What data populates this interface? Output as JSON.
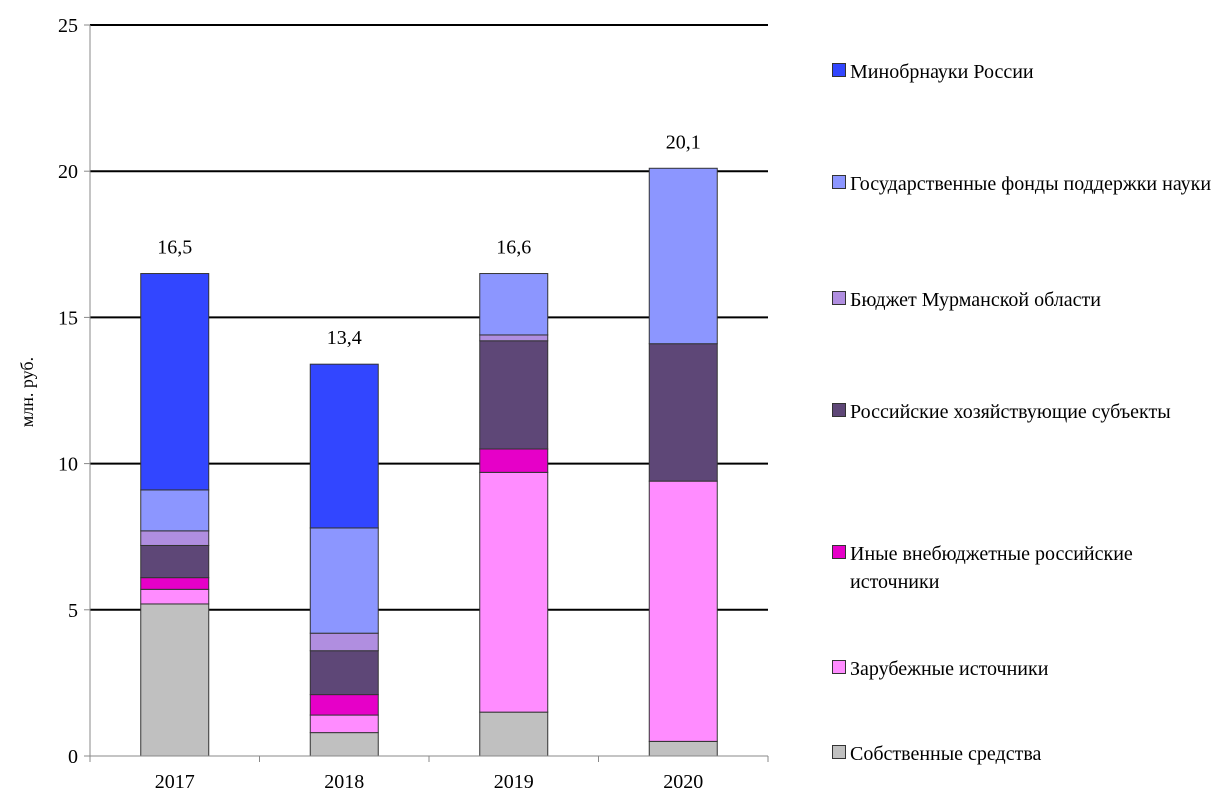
{
  "chart_data": {
    "type": "bar",
    "stacked": true,
    "categories": [
      "2017",
      "2018",
      "2019",
      "2020"
    ],
    "ylabel": "млн. руб.",
    "ylim": [
      0,
      25
    ],
    "yticks": [
      0,
      5,
      10,
      15,
      20,
      25
    ],
    "grid": true,
    "legend_position": "right",
    "totals": [
      "16,5",
      "13,4",
      "16,6",
      "20,1"
    ],
    "series": [
      {
        "name": "Собственные средства",
        "color": "#c0c0c0",
        "values": [
          5.2,
          0.8,
          1.5,
          0.5
        ]
      },
      {
        "name": "Зарубежные источники",
        "color": "#ff8cff",
        "values": [
          0.5,
          0.6,
          8.2,
          8.9
        ]
      },
      {
        "name": "Иные внебюджетные российские источники",
        "color": "#e600c8",
        "values": [
          0.4,
          0.7,
          0.8,
          0.0
        ]
      },
      {
        "name": "Российские хозяйствующие субъекты",
        "color": "#5e4777",
        "values": [
          1.1,
          1.5,
          3.7,
          4.7
        ]
      },
      {
        "name": "Бюджет Мурманской области",
        "color": "#b08ee0",
        "values": [
          0.5,
          0.6,
          0.2,
          0.0
        ]
      },
      {
        "name": "Государственные фонды поддержки науки",
        "color": "#8c96ff",
        "values": [
          1.4,
          3.6,
          2.1,
          6.0
        ]
      },
      {
        "name": "Минобрнауки России",
        "color": "#3246ff",
        "values": [
          7.4,
          5.6,
          0.0,
          0.0
        ]
      }
    ]
  }
}
